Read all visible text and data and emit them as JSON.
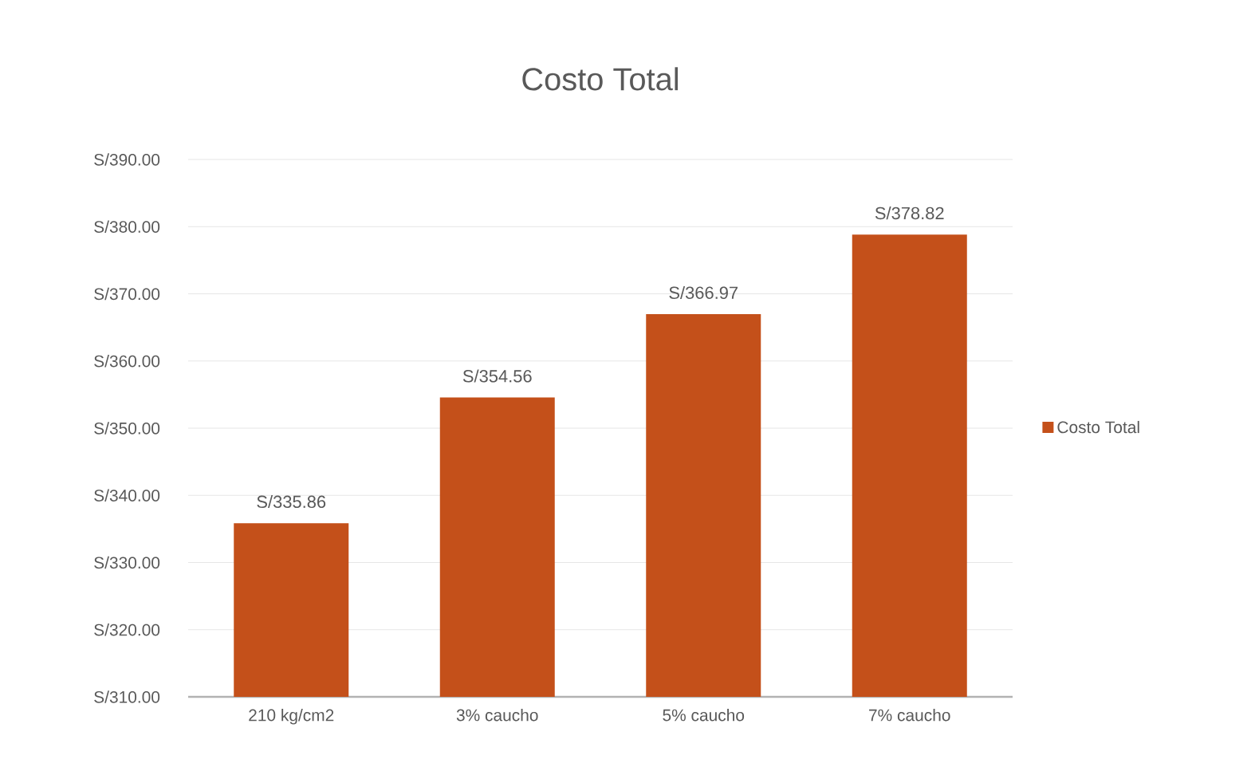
{
  "chart_data": {
    "type": "bar",
    "title": "Costo Total",
    "categories": [
      "210 kg/cm2",
      "3% caucho",
      "5% caucho",
      "7%  caucho"
    ],
    "series": [
      {
        "name": "Costo Total",
        "color": "#c4501a",
        "values": [
          335.86,
          354.56,
          366.97,
          378.82
        ],
        "value_labels": [
          "S/335.86",
          "S/354.56",
          "S/366.97",
          "S/378.82"
        ]
      }
    ],
    "ylim": [
      310,
      390
    ],
    "yticks": [
      {
        "value": 310,
        "label": "S/310.00"
      },
      {
        "value": 320,
        "label": "S/320.00"
      },
      {
        "value": 330,
        "label": "S/330.00"
      },
      {
        "value": 340,
        "label": "S/340.00"
      },
      {
        "value": 350,
        "label": "S/350.00"
      },
      {
        "value": 360,
        "label": "S/360.00"
      },
      {
        "value": 370,
        "label": "S/370.00"
      },
      {
        "value": 380,
        "label": "S/380.00"
      },
      {
        "value": 390,
        "label": "S/390.00"
      }
    ],
    "grid": "y",
    "legend": "right"
  }
}
